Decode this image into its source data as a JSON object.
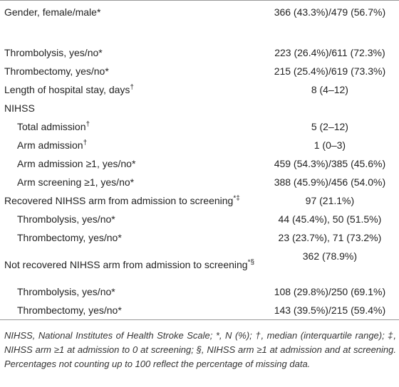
{
  "table": {
    "rows": [
      {
        "label": "Gender, female/male*",
        "value": "366 (43.3%)/479 (56.7%)"
      },
      {
        "label": "Thrombolysis, yes/no*",
        "value": "223 (26.4%)/611 (72.3%)"
      },
      {
        "label": "Thrombectomy, yes/no*",
        "value": "215 (25.4%)/619 (73.3%)"
      },
      {
        "label": "Length of hospital stay, days",
        "sup": "†",
        "value": "8 (4–12)"
      },
      {
        "label": "NIHSS"
      },
      {
        "label": "Total admission",
        "sup": "†",
        "value": "5 (2–12)"
      },
      {
        "label": "Arm admission",
        "sup": "†",
        "value": "1 (0–3)"
      },
      {
        "label": "Arm admission ≥1, yes/no*",
        "value": "459 (54.3%)/385 (45.6%)"
      },
      {
        "label": "Arm screening ≥1, yes/no*",
        "value": "388 (45.9%)/456 (54.0%)"
      },
      {
        "label": "Recovered NIHSS arm from admission to screening",
        "sup": "*‡",
        "value": "97 (21.1%)"
      },
      {
        "label": "Thrombolysis, yes/no*",
        "value": "44 (45.4%), 50 (51.5%)"
      },
      {
        "label": "Thrombectomy, yes/no*",
        "value": "23 (23.7%), 71 (73.2%)"
      },
      {
        "label": "Not recovered NIHSS arm from admission to screening",
        "sup": "*§",
        "value": "362 (78.9%)"
      },
      {
        "label": "Thrombolysis, yes/no*",
        "value": "108 (29.8%)/250 (69.1%)"
      },
      {
        "label": "Thrombectomy, yes/no*",
        "value": "143 (39.5%)/215 (59.4%)"
      }
    ],
    "footnote": "NIHSS, National Institutes of Health Stroke Scale; *, N (%); †, median (interquartile range); ‡, NIHSS arm ≥1 at admission to 0 at screening; §, NIHSS arm ≥1 at admission and at screening. Percentages not counting up to 100 reflect the percentage of missing data."
  }
}
